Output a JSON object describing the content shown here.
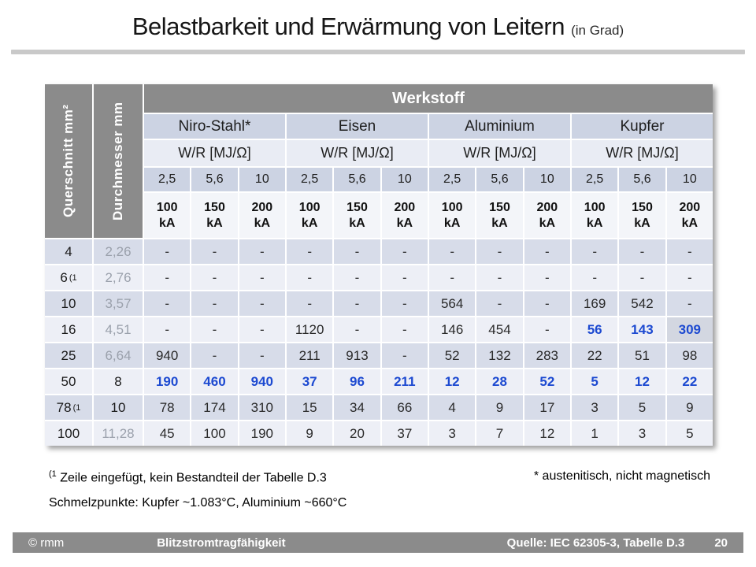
{
  "page": {
    "title_main": "Belastbarkeit und Erwärmung von Leitern",
    "title_suffix": "(in Grad)"
  },
  "table": {
    "left_headers": {
      "cross_section": "Querschnitt mm²",
      "diameter": "Durchmesser mm"
    },
    "werkstoff_label": "Werkstoff",
    "materials": [
      "Niro-Stahl*",
      "Eisen",
      "Aluminium",
      "Kupfer"
    ],
    "wr_label": "W/R  [MJ/Ω]",
    "energy_levels": [
      "2,5",
      "5,6",
      "10"
    ],
    "currents": [
      "100 kA",
      "150 kA",
      "200 kA"
    ],
    "rows": [
      {
        "cross": "4",
        "sup": "",
        "dia": "2,26",
        "dia_muted": true,
        "cells": [
          "-",
          "-",
          "-",
          "-",
          "-",
          "-",
          "-",
          "-",
          "-",
          "-",
          "-",
          "-"
        ],
        "blue": [],
        "hl": []
      },
      {
        "cross": "6",
        "sup": "(1",
        "dia": "2,76",
        "dia_muted": true,
        "cells": [
          "-",
          "-",
          "-",
          "-",
          "-",
          "-",
          "-",
          "-",
          "-",
          "-",
          "-",
          "-"
        ],
        "blue": [],
        "hl": []
      },
      {
        "cross": "10",
        "sup": "",
        "dia": "3,57",
        "dia_muted": true,
        "cells": [
          "-",
          "-",
          "-",
          "-",
          "-",
          "-",
          "564",
          "-",
          "-",
          "169",
          "542",
          "-"
        ],
        "blue": [],
        "hl": []
      },
      {
        "cross": "16",
        "sup": "",
        "dia": "4,51",
        "dia_muted": true,
        "cells": [
          "-",
          "-",
          "-",
          "1120",
          "-",
          "-",
          "146",
          "454",
          "-",
          "56",
          "143",
          "309"
        ],
        "blue": [
          9,
          10,
          11
        ],
        "hl": [
          11
        ]
      },
      {
        "cross": "25",
        "sup": "",
        "dia": "6,64",
        "dia_muted": true,
        "cells": [
          "940",
          "-",
          "-",
          "211",
          "913",
          "-",
          "52",
          "132",
          "283",
          "22",
          "51",
          "98"
        ],
        "blue": [],
        "hl": []
      },
      {
        "cross": "50",
        "sup": "",
        "dia": "8",
        "dia_muted": false,
        "cells": [
          "190",
          "460",
          "940",
          "37",
          "96",
          "211",
          "12",
          "28",
          "52",
          "5",
          "12",
          "22"
        ],
        "blue": [
          0,
          1,
          2,
          3,
          4,
          5,
          6,
          7,
          8,
          9,
          10,
          11
        ],
        "hl": []
      },
      {
        "cross": "78",
        "sup": "(1",
        "dia": "10",
        "dia_muted": false,
        "cells": [
          "78",
          "174",
          "310",
          "15",
          "34",
          "66",
          "4",
          "9",
          "17",
          "3",
          "5",
          "9"
        ],
        "blue": [],
        "hl": []
      },
      {
        "cross": "100",
        "sup": "",
        "dia": "11,28",
        "dia_muted": true,
        "cells": [
          "45",
          "100",
          "190",
          "9",
          "20",
          "37",
          "3",
          "7",
          "12",
          "1",
          "3",
          "5"
        ],
        "blue": [],
        "hl": []
      }
    ]
  },
  "footnotes": {
    "row_note_sup": "(1",
    "row_note": "Zeile eingefügt, kein Bestandteil der Tabelle D.3",
    "steel_note": "* austenitisch, nicht magnetisch",
    "melting_note": "Schmelzpunkte: Kupfer ~1.083°C, Aluminium ~660°C"
  },
  "footer": {
    "copyright": "© rmm",
    "topic": "Blitzstromtragfähigkeit",
    "source": "Quelle: IEC 62305-3, Tabelle D.3",
    "page_number": "20"
  },
  "colors": {
    "header_gray": "#8b8b8b",
    "band_blue": "#ccd3e3",
    "band_light": "#e9ecf4",
    "ka_band": "#f3f5f9",
    "row_dark": "#d7dce9",
    "row_light": "#edeff6",
    "accent_blue": "#1d4ad1",
    "muted_text": "#9ba1ac",
    "cell_highlight": "#d3d7e1"
  }
}
